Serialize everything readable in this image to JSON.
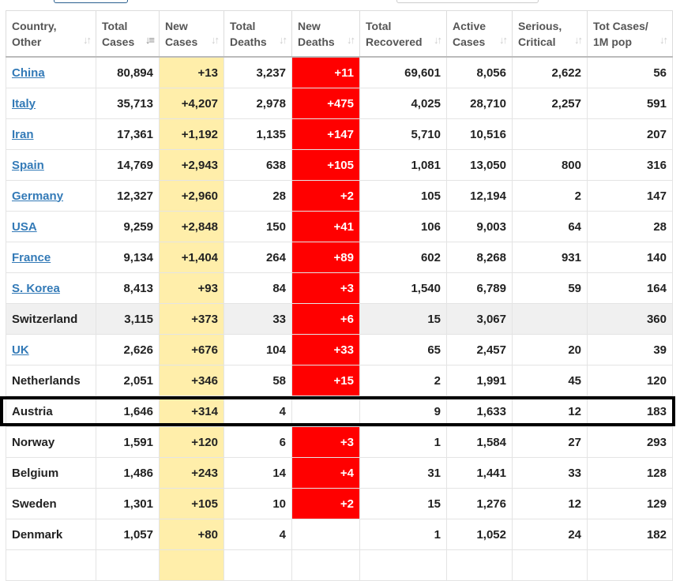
{
  "columns": [
    {
      "label1": "Country,",
      "label2": "Other"
    },
    {
      "label1": "Total",
      "label2": "Cases",
      "active": true
    },
    {
      "label1": "New",
      "label2": "Cases"
    },
    {
      "label1": "Total",
      "label2": "Deaths"
    },
    {
      "label1": "New",
      "label2": "Deaths"
    },
    {
      "label1": "Total",
      "label2": "Recovered"
    },
    {
      "label1": "Active",
      "label2": "Cases"
    },
    {
      "label1": "Serious,",
      "label2": "Critical"
    },
    {
      "label1": "Tot Cases/",
      "label2": "1M pop"
    }
  ],
  "highlight_color": "#000000",
  "rows": [
    {
      "country": "China",
      "link": true,
      "cells": [
        "80,894",
        "+13",
        "3,237",
        "+11",
        "69,601",
        "8,056",
        "2,622",
        "56"
      ]
    },
    {
      "country": "Italy",
      "link": true,
      "cells": [
        "35,713",
        "+4,207",
        "2,978",
        "+475",
        "4,025",
        "28,710",
        "2,257",
        "591"
      ]
    },
    {
      "country": "Iran",
      "link": true,
      "cells": [
        "17,361",
        "+1,192",
        "1,135",
        "+147",
        "5,710",
        "10,516",
        "",
        "207"
      ]
    },
    {
      "country": "Spain",
      "link": true,
      "cells": [
        "14,769",
        "+2,943",
        "638",
        "+105",
        "1,081",
        "13,050",
        "800",
        "316"
      ]
    },
    {
      "country": "Germany",
      "link": true,
      "cells": [
        "12,327",
        "+2,960",
        "28",
        "+2",
        "105",
        "12,194",
        "2",
        "147"
      ]
    },
    {
      "country": "USA",
      "link": true,
      "cells": [
        "9,259",
        "+2,848",
        "150",
        "+41",
        "106",
        "9,003",
        "64",
        "28"
      ]
    },
    {
      "country": "France",
      "link": true,
      "cells": [
        "9,134",
        "+1,404",
        "264",
        "+89",
        "602",
        "8,268",
        "931",
        "140"
      ]
    },
    {
      "country": "S. Korea",
      "link": true,
      "cells": [
        "8,413",
        "+93",
        "84",
        "+3",
        "1,540",
        "6,789",
        "59",
        "164"
      ]
    },
    {
      "country": "Switzerland",
      "link": false,
      "grey": true,
      "cells": [
        "3,115",
        "+373",
        "33",
        "+6",
        "15",
        "3,067",
        "",
        "360"
      ]
    },
    {
      "country": "UK",
      "link": true,
      "cells": [
        "2,626",
        "+676",
        "104",
        "+33",
        "65",
        "2,457",
        "20",
        "39"
      ]
    },
    {
      "country": "Netherlands",
      "link": false,
      "cells": [
        "2,051",
        "+346",
        "58",
        "+15",
        "2",
        "1,991",
        "45",
        "120"
      ]
    },
    {
      "country": "Austria",
      "link": false,
      "highlighted": true,
      "cells": [
        "1,646",
        "+314",
        "4",
        "",
        "9",
        "1,633",
        "12",
        "183"
      ]
    },
    {
      "country": "Norway",
      "link": false,
      "cells": [
        "1,591",
        "+120",
        "6",
        "+3",
        "1",
        "1,584",
        "27",
        "293"
      ]
    },
    {
      "country": "Belgium",
      "link": false,
      "cells": [
        "1,486",
        "+243",
        "14",
        "+4",
        "31",
        "1,441",
        "33",
        "128"
      ]
    },
    {
      "country": "Sweden",
      "link": false,
      "cells": [
        "1,301",
        "+105",
        "10",
        "+2",
        "15",
        "1,276",
        "12",
        "129"
      ]
    },
    {
      "country": "Denmark",
      "link": false,
      "cells": [
        "1,057",
        "+80",
        "4",
        "",
        "1",
        "1,052",
        "24",
        "182"
      ]
    },
    {
      "country": "",
      "link": false,
      "cells": [
        "",
        "",
        "",
        "",
        "",
        "",
        "",
        ""
      ]
    }
  ]
}
